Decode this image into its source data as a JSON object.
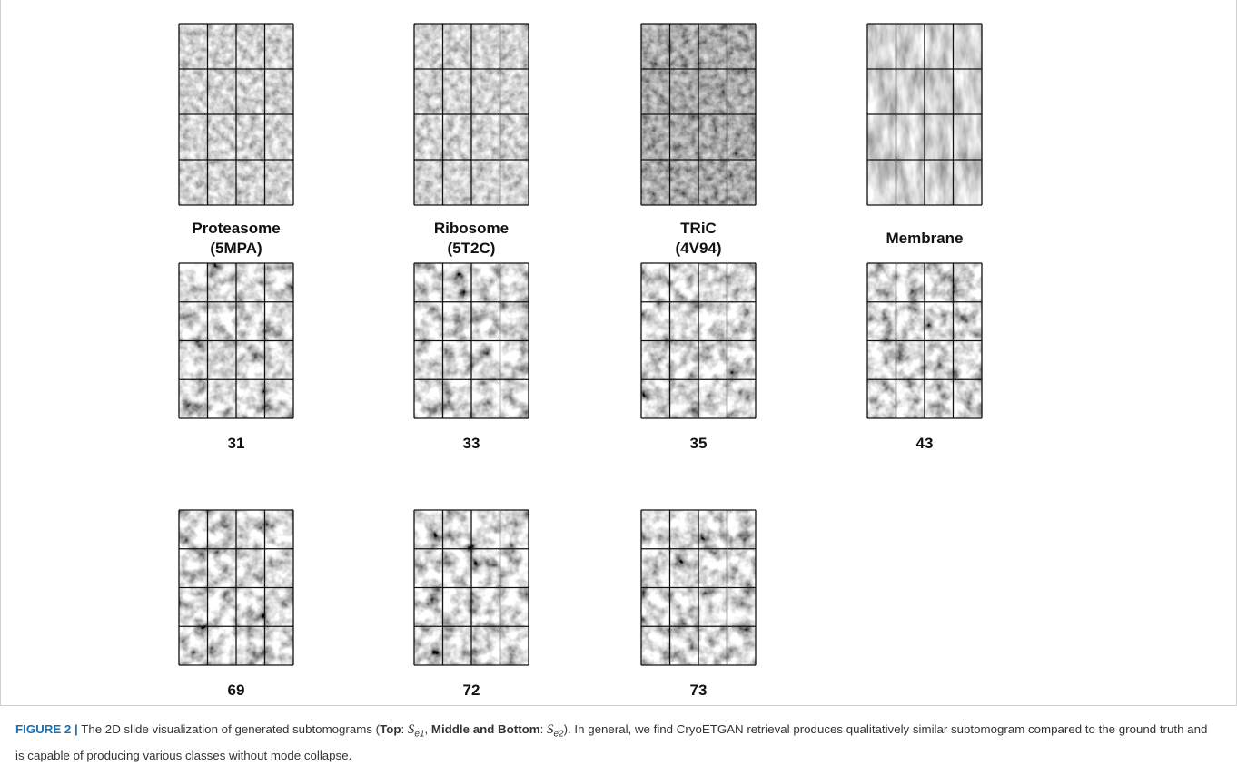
{
  "rows": [
    {
      "panels": [
        {
          "label": [
            "Proteasome",
            "(5MPA)"
          ]
        },
        {
          "label": [
            "Ribosome",
            "(5T2C)"
          ]
        },
        {
          "label": [
            "TRiC",
            "(4V94)"
          ]
        },
        {
          "label": [
            "Membrane"
          ]
        }
      ]
    },
    {
      "panels": [
        {
          "label": [
            "31"
          ]
        },
        {
          "label": [
            "33"
          ]
        },
        {
          "label": [
            "35"
          ]
        },
        {
          "label": [
            "43"
          ]
        }
      ]
    },
    {
      "panels": [
        {
          "label": [
            "69"
          ]
        },
        {
          "label": [
            "72"
          ]
        },
        {
          "label": [
            "73"
          ]
        }
      ]
    }
  ],
  "caption": [
    "FIGURE 2 |",
    " The 2D slide visualization of generated subtomograms (",
    "Top",
    ": ",
    "S",
    "e1",
    ", ",
    "Middle and Bottom",
    ": ",
    "S",
    "e2",
    "). In general, we find CryoETGAN retrieval produces qualitatively similar subtomogram compared to the ground truth and is capable of producing various classes without mode collapse."
  ]
}
